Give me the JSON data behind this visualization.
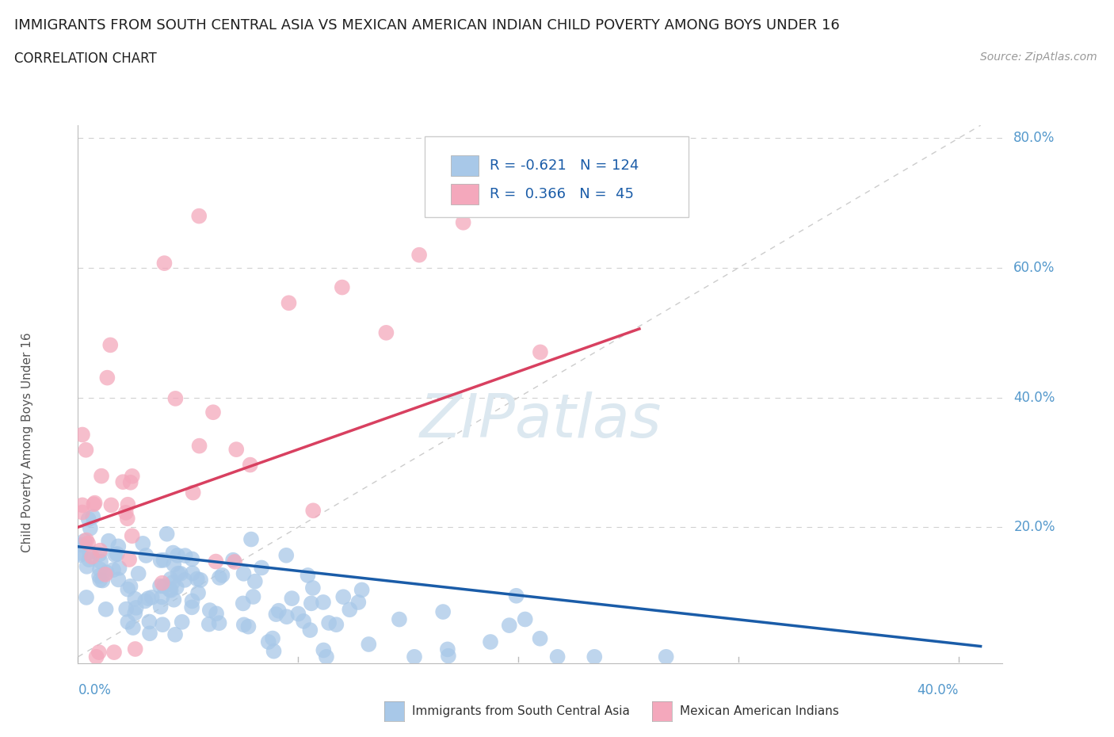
{
  "title": "IMMIGRANTS FROM SOUTH CENTRAL ASIA VS MEXICAN AMERICAN INDIAN CHILD POVERTY AMONG BOYS UNDER 16",
  "subtitle": "CORRELATION CHART",
  "source": "Source: ZipAtlas.com",
  "legend_labels": [
    "Immigrants from South Central Asia",
    "Mexican American Indians"
  ],
  "r_blue": -0.621,
  "n_blue": 124,
  "r_pink": 0.366,
  "n_pink": 45,
  "blue_color": "#a8c8e8",
  "pink_color": "#f4a8bc",
  "blue_line_color": "#1a5ca8",
  "pink_line_color": "#d84060",
  "ref_line_color": "#cccccc",
  "watermark": "ZIPatlas",
  "watermark_color": "#dce8f0",
  "title_color": "#202020",
  "subtitle_color": "#202020",
  "source_color": "#999999",
  "tick_color": "#5599cc",
  "grid_color": "#d0d0d0",
  "xlim": [
    0.0,
    0.42
  ],
  "ylim": [
    -0.01,
    0.82
  ],
  "seed": 7
}
